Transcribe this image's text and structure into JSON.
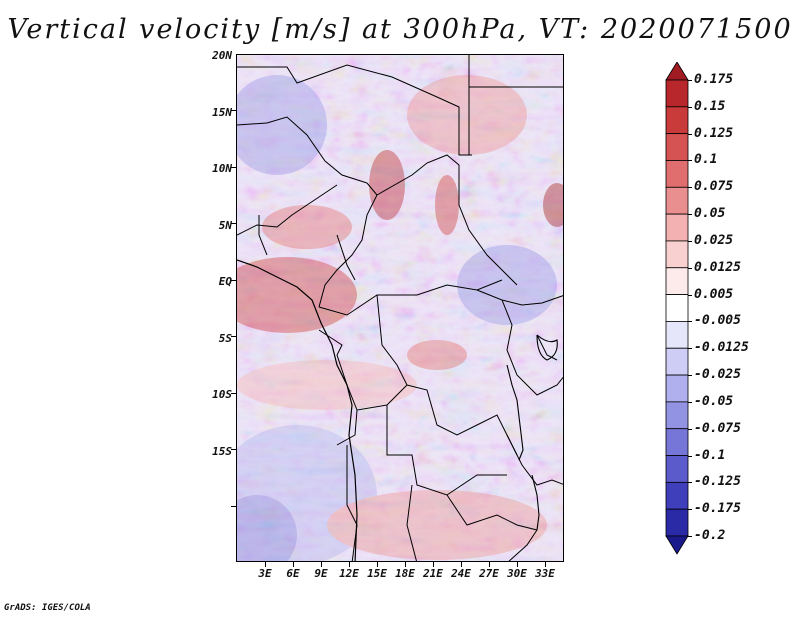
{
  "title": "Vertical velocity [m/s] at 300hPa, VT: 2020071500",
  "credit": "GrADS: IGES/COLA",
  "map": {
    "variable": "Vertical velocity",
    "units": "m/s",
    "level": "300hPa",
    "valid_time": "2020071500",
    "lat_labels": [
      "20N",
      "15N",
      "10N",
      "5N",
      "EQ",
      "5S",
      "10S",
      "15S"
    ],
    "lon_labels": [
      "3E",
      "6E",
      "9E",
      "12E",
      "15E",
      "18E",
      "21E",
      "24E",
      "27E",
      "30E",
      "33E"
    ]
  },
  "colorbar": {
    "labels": [
      "0.175",
      "0.15",
      "0.125",
      "0.1",
      "0.075",
      "0.05",
      "0.025",
      "0.0125",
      "0.005",
      "-0.005",
      "-0.0125",
      "-0.025",
      "-0.05",
      "-0.075",
      "-0.1",
      "-0.125",
      "-0.175",
      "-0.2"
    ],
    "colors": [
      "#a01b22",
      "#b8272c",
      "#c93a3a",
      "#d65353",
      "#e06e6e",
      "#ea8f8f",
      "#f3b1b1",
      "#f9d0d0",
      "#fdeaea",
      "#ffffff",
      "#e6e6fb",
      "#cdcdf5",
      "#b0b0ee",
      "#9393e4",
      "#7676d8",
      "#5b5bcb",
      "#3f3fbb",
      "#2a2aa6",
      "#1a1a8c"
    ]
  }
}
